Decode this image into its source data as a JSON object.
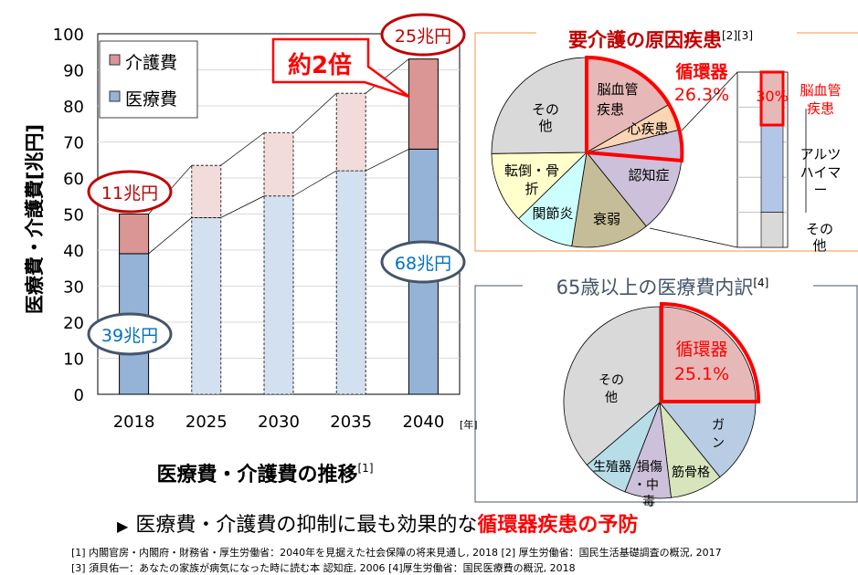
{
  "chart_data": [
    {
      "type": "bar",
      "stacked": true,
      "title": "医療費・介護費の推移",
      "title_ref": "[1]",
      "ylabel": "医療費・介護費[兆円]",
      "xunit": "[年]",
      "categories": [
        "2018",
        "2025",
        "2030",
        "2035",
        "2040"
      ],
      "ylim": [
        0,
        100
      ],
      "yticks": [
        "0",
        "10",
        "20",
        "30",
        "40",
        "50",
        "60",
        "70",
        "80",
        "90",
        "100"
      ],
      "grid": true,
      "legend_position": "top-left",
      "series": [
        {
          "name": "医療費",
          "values": [
            39,
            49,
            55,
            62,
            68
          ],
          "color": "#95b3d7",
          "projected_color": "#d3e0f0"
        },
        {
          "name": "介護費",
          "values": [
            11,
            14.5,
            17.5,
            21.5,
            25
          ],
          "color": "#d99694",
          "projected_color": "#f2dcdb"
        }
      ],
      "annotations": {
        "care_2018": "11兆円",
        "medical_2018": "39兆円",
        "care_2040": "25兆円",
        "medical_2040": "68兆円",
        "ratio": "約2倍"
      }
    },
    {
      "type": "pie",
      "title": "要介護の原因疾患",
      "title_ref": "[2][3]",
      "highlight": {
        "label1": "循環器",
        "label2": "26.3%"
      },
      "slices": [
        {
          "label": "脳血管疾患",
          "value": 16.6,
          "color": "#e6b8b7"
        },
        {
          "label": "心疾患",
          "value": 4.6,
          "color": "#fcd5b4"
        },
        {
          "label": "認知症",
          "value": 18.0,
          "color": "#ccc0da"
        },
        {
          "label": "衰弱",
          "value": 13.3,
          "color": "#c4bd97"
        },
        {
          "label": "関節炎",
          "value": 10.2,
          "color": "#ccffff"
        },
        {
          "label": "転倒・骨折",
          "value": 12.1,
          "color": "#ffffcc"
        },
        {
          "label": "その他",
          "value": 25.2,
          "color": "#d9d9d9"
        }
      ],
      "breakdown": {
        "type": "stacked-bar",
        "segments": [
          {
            "label": "脳血管疾患",
            "value": 30,
            "value_label": "30%",
            "color": "#e6b8b7"
          },
          {
            "label": "アルツハイマー",
            "value": 50,
            "color": "#b4c6e7"
          },
          {
            "label": "その他",
            "value": 20,
            "color": "#d9d9d9"
          }
        ]
      }
    },
    {
      "type": "pie",
      "title": "65歳以上の医療費内訳",
      "title_ref": "[4]",
      "highlight": {
        "label1": "循環器",
        "label2": "25.1%"
      },
      "slices": [
        {
          "label": "循環器",
          "value": 25.1,
          "color": "#e6b8b7"
        },
        {
          "label": "ガン",
          "value": 14.1,
          "color": "#b8cce4"
        },
        {
          "label": "筋骨格",
          "value": 8.9,
          "color": "#d7e4bc"
        },
        {
          "label": "損傷・中毒",
          "value": 7.8,
          "color": "#ccc0da"
        },
        {
          "label": "生殖器",
          "value": 7.8,
          "color": "#b7dde8"
        },
        {
          "label": "その他",
          "value": 36.3,
          "color": "#d9d9d9"
        }
      ]
    }
  ],
  "labels": {
    "pie1": {
      "cerebro1": "脳血管",
      "cerebro2": "疾患",
      "heart": "心疾患",
      "dementia": "認知症",
      "frailty": "衰弱",
      "joint": "関節炎",
      "fall1": "転倒・骨",
      "fall2": "折",
      "other1": "その",
      "other2": "他"
    },
    "bar_side": {
      "cerebro1": "脳血管",
      "cerebro2": "疾患",
      "alz1": "アルツ",
      "alz2": "ハイマ",
      "alz3": "ー",
      "other1": "その",
      "other2": "他"
    },
    "pie2": {
      "other1": "その",
      "other2": "他",
      "cancer1": "ガ",
      "cancer2": "ン",
      "muscle": "筋骨格",
      "injury1": "損傷",
      "injury2": "・中",
      "injury3": "毒",
      "repro": "生殖器"
    }
  },
  "conclusion": {
    "marker": "▶",
    "text": "医療費・介護費の抑制に最も効果的な",
    "highlight": "循環器疾患の予防"
  },
  "references": {
    "line1": "[1] 内閣官房・内閣府・財務省・厚生労働省：2040年を見据えた社会保障の将来見通し, 2018  [2] 厚生労働省：国民生活基礎調査の概況, 2017",
    "line2": "[3] 須貝佑一：あなたの家族が病気になった時に読む本 認知症, 2006  [4]厚生労働省：国民医療費の概況, 2018"
  },
  "colors": {
    "accent_red": "#ff0000",
    "dark_red": "#c00000",
    "blue_text": "#0070c0",
    "navy_outline": "#44546a",
    "orange_frame": "#f79646"
  }
}
